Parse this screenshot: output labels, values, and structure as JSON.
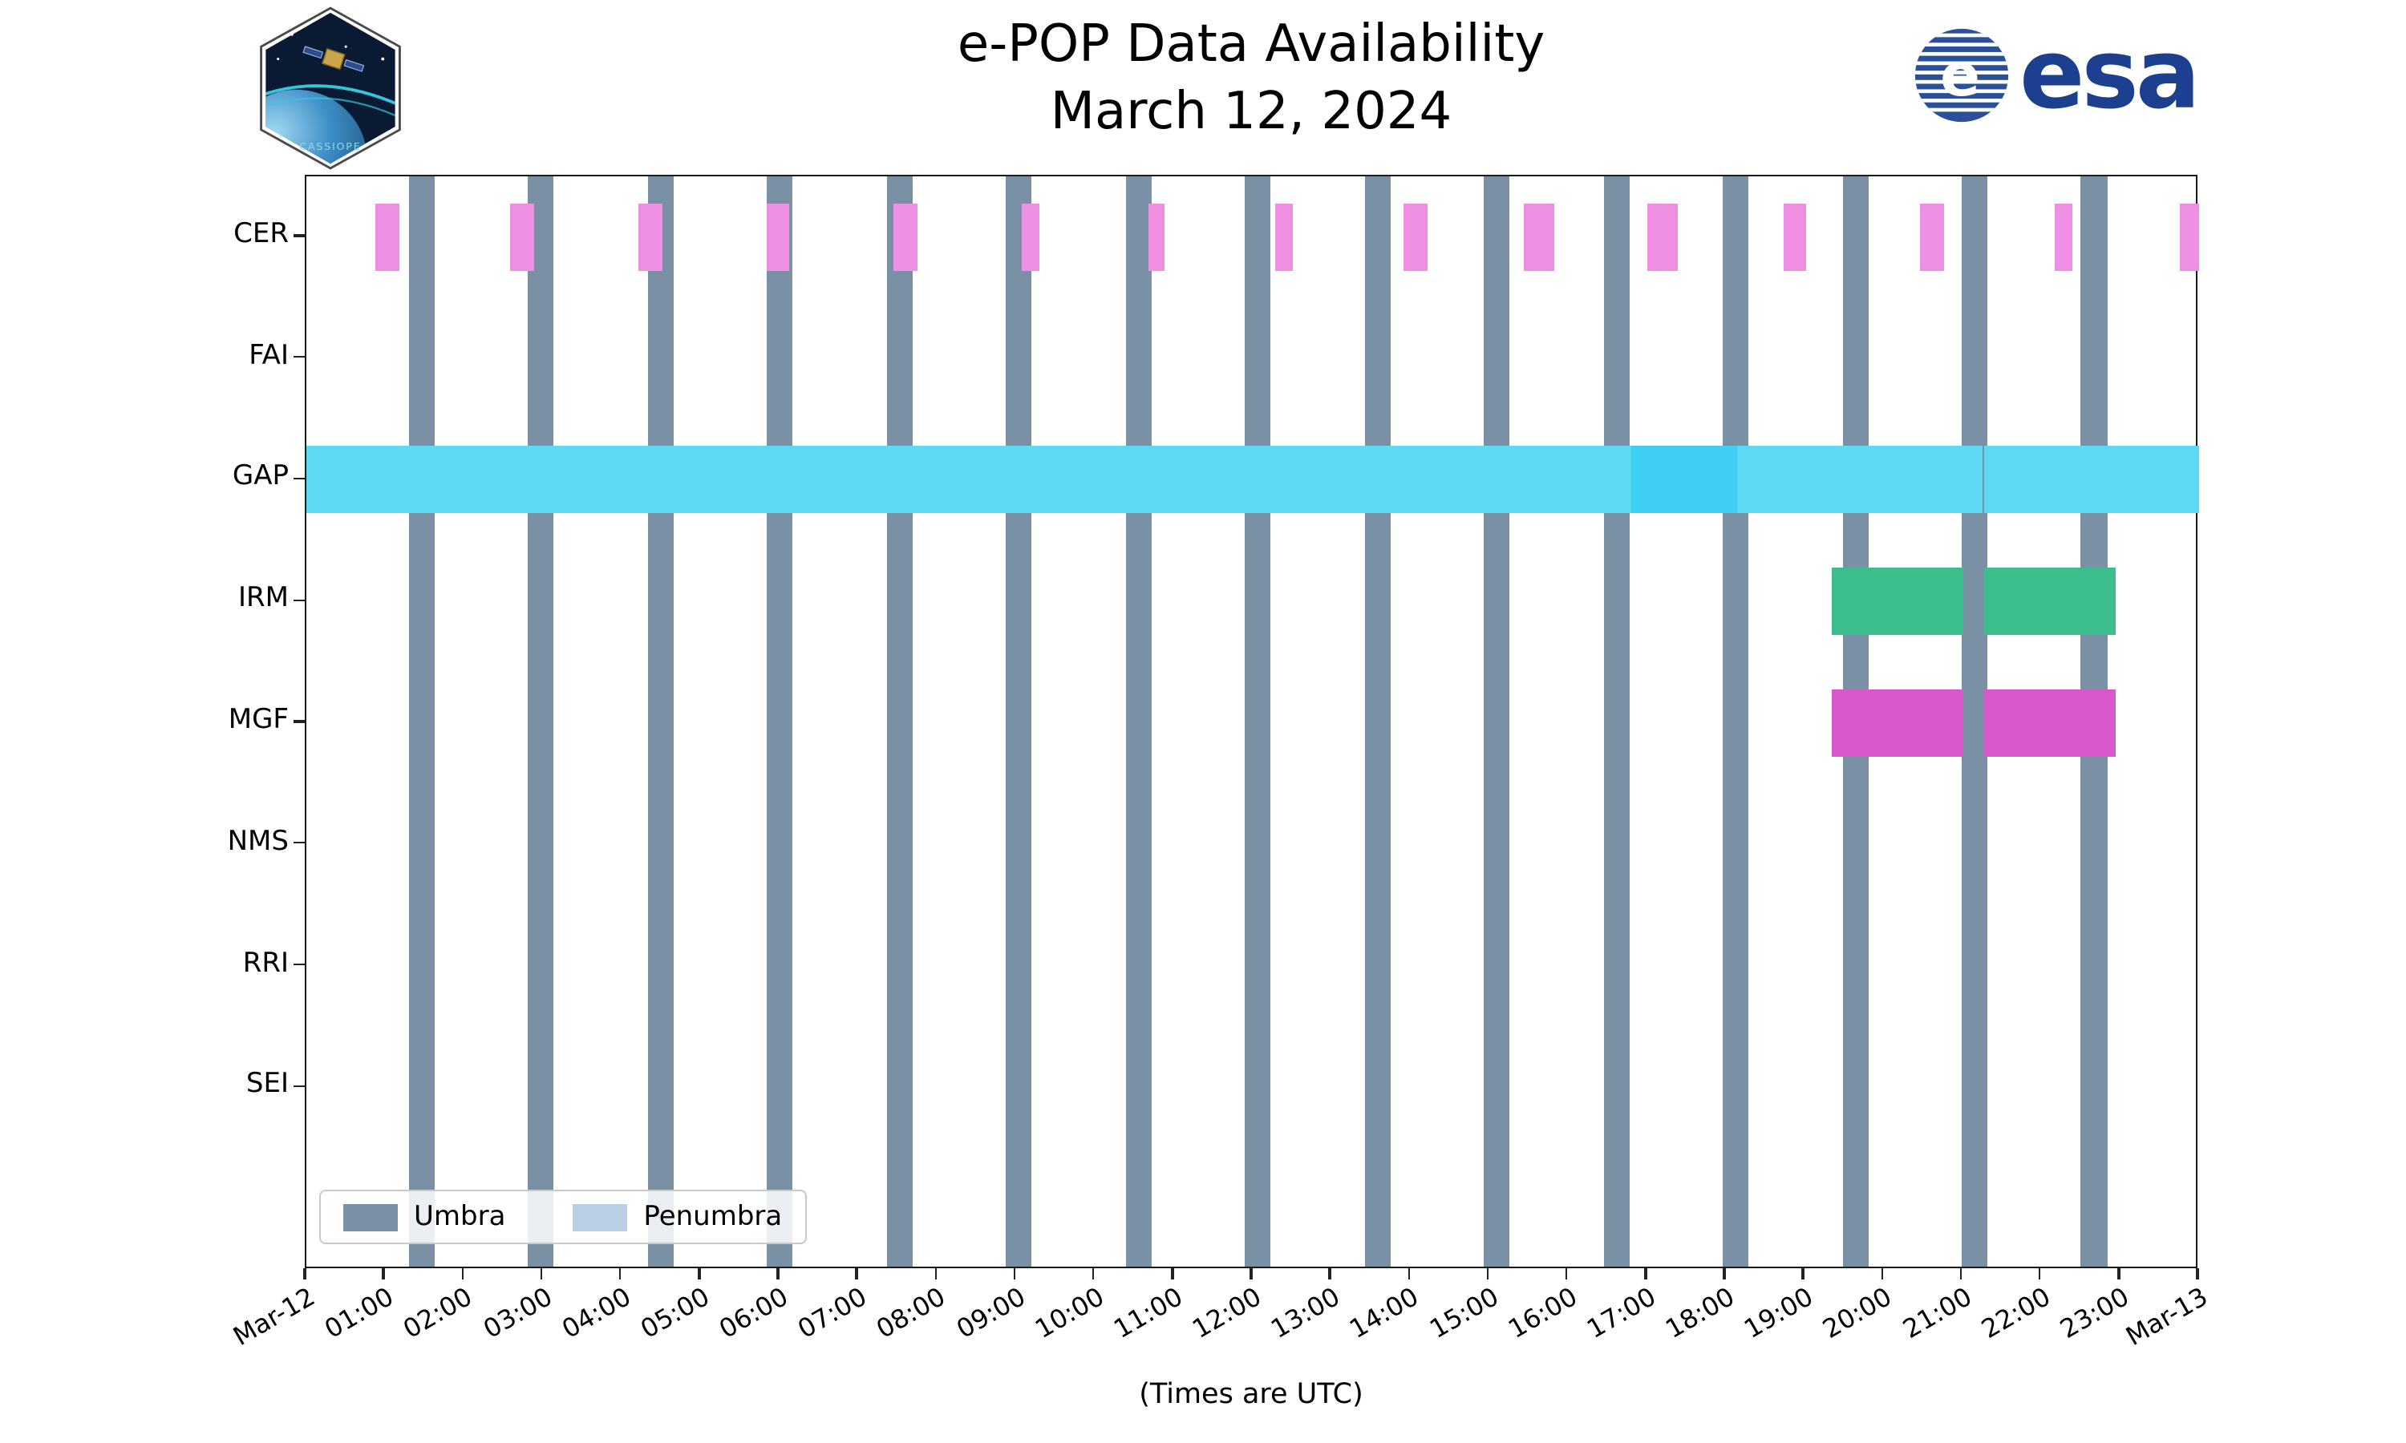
{
  "title": {
    "line1": "e-POP Data Availability",
    "line2": "March 12, 2024"
  },
  "logos": {
    "cassiope_text": "CASSIOPE",
    "esa_text": "esa",
    "esa_globe_letter": "e"
  },
  "axis": {
    "x_label": "(Times are UTC)"
  },
  "legend": [
    {
      "label": "Umbra",
      "color": "#7a90a5"
    },
    {
      "label": "Penumbra",
      "color": "#b9cfe3"
    }
  ],
  "chart_data": {
    "type": "timeline",
    "title": "e-POP Data Availability",
    "subtitle": "March 12, 2024",
    "x_unit": "hours UTC on 2024-03-12",
    "xlim_hours": [
      0,
      24
    ],
    "x_ticks": [
      "Mar-12",
      "01:00",
      "02:00",
      "03:00",
      "04:00",
      "05:00",
      "06:00",
      "07:00",
      "08:00",
      "09:00",
      "10:00",
      "11:00",
      "12:00",
      "13:00",
      "14:00",
      "15:00",
      "16:00",
      "17:00",
      "18:00",
      "19:00",
      "20:00",
      "21:00",
      "22:00",
      "23:00",
      "Mar-13"
    ],
    "rows": [
      "CER",
      "FAI",
      "GAP",
      "IRM",
      "MGF",
      "NMS",
      "RRI",
      "SEI"
    ],
    "umbra_color": "#7a90a5",
    "penumbra_color": "#b9cfe3",
    "umbra_intervals": [
      [
        1.3,
        1.63
      ],
      [
        2.81,
        3.14
      ],
      [
        4.33,
        4.66
      ],
      [
        5.84,
        6.17
      ],
      [
        7.36,
        7.69
      ],
      [
        8.87,
        9.2
      ],
      [
        10.39,
        10.72
      ],
      [
        11.9,
        12.23
      ],
      [
        13.42,
        13.75
      ],
      [
        14.93,
        15.26
      ],
      [
        16.45,
        16.78
      ],
      [
        17.96,
        18.29
      ],
      [
        19.48,
        19.81
      ],
      [
        20.99,
        21.32
      ],
      [
        22.5,
        22.84
      ]
    ],
    "series": [
      {
        "row": "CER",
        "color": "#ef8fe4",
        "intervals": [
          [
            0.87,
            1.17
          ],
          [
            2.59,
            2.89
          ],
          [
            4.21,
            4.51
          ],
          [
            5.83,
            6.13
          ],
          [
            7.45,
            7.75
          ],
          [
            9.07,
            9.29
          ],
          [
            10.67,
            10.89
          ],
          [
            12.29,
            12.51
          ],
          [
            13.91,
            14.21
          ],
          [
            15.43,
            15.83
          ],
          [
            17.01,
            17.4
          ],
          [
            18.73,
            19.02
          ],
          [
            20.47,
            20.76
          ],
          [
            22.16,
            22.4
          ],
          [
            23.76,
            24.0
          ]
        ]
      },
      {
        "row": "GAP",
        "color": "#5ed8f3",
        "intervals": [
          [
            0.0,
            16.8
          ],
          [
            18.15,
            21.26
          ],
          [
            21.28,
            24.0
          ]
        ]
      },
      {
        "row": "GAP",
        "color": "#3ecff2",
        "intervals": [
          [
            16.8,
            18.15
          ]
        ]
      },
      {
        "row": "IRM",
        "color": "#3cbd8c",
        "intervals": [
          [
            19.35,
            21.0
          ],
          [
            21.27,
            22.95
          ]
        ]
      },
      {
        "row": "MGF",
        "color": "#d957cb",
        "intervals": [
          [
            19.35,
            21.0
          ],
          [
            21.27,
            22.95
          ]
        ]
      }
    ]
  }
}
